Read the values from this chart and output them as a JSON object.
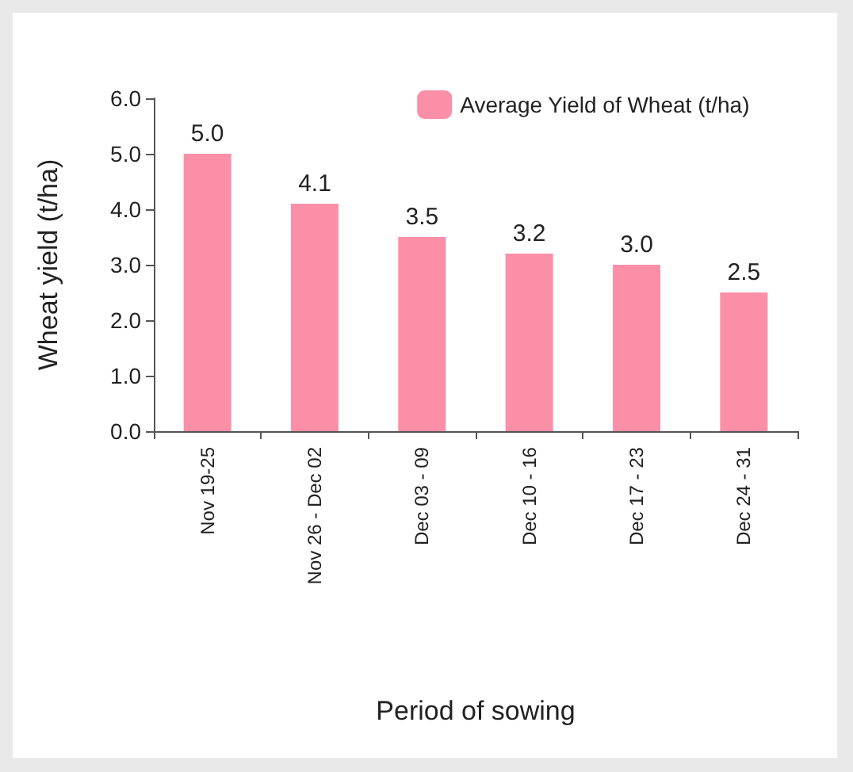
{
  "chart_data": {
    "type": "bar",
    "xlabel": "Period of sowing",
    "ylabel": "Wheat yield (t/ha)",
    "categories": [
      "Nov 19-25",
      "Nov 26 - Dec 02",
      "Dec 03 - 09",
      "Dec 10 - 16",
      "Dec 17 - 23",
      "Dec 24 - 31"
    ],
    "series": [
      {
        "name": "Average Yield of Wheat (t/ha)",
        "color": "#fc8fa8",
        "values": [
          5.0,
          4.1,
          3.5,
          3.2,
          3.0,
          2.5
        ],
        "value_labels": [
          "5.0",
          "4.1",
          "3.5",
          "3.2",
          "3.0",
          "2.5"
        ]
      }
    ],
    "ylim": [
      0,
      6
    ],
    "yticks": [
      {
        "value": 0,
        "label": "0.0"
      },
      {
        "value": 1,
        "label": "1.0"
      },
      {
        "value": 2,
        "label": "2.0"
      },
      {
        "value": 3,
        "label": "3.0"
      },
      {
        "value": 4,
        "label": "4.0"
      },
      {
        "value": 5,
        "label": "5.0"
      },
      {
        "value": 6,
        "label": "6.0"
      }
    ],
    "legend": "top right",
    "grid": false
  }
}
